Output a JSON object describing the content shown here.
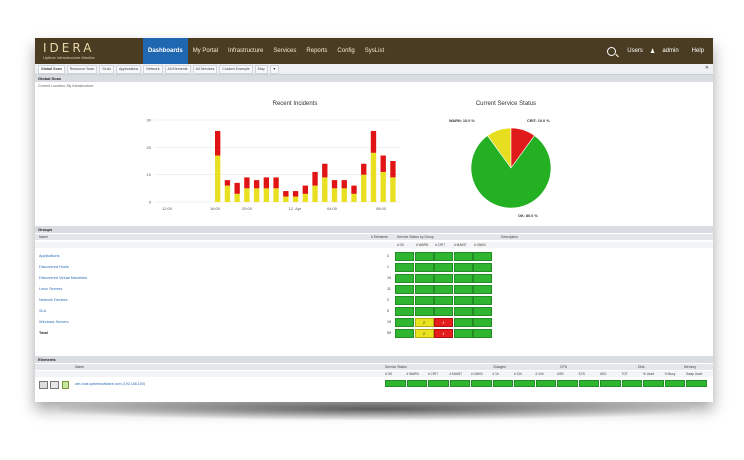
{
  "brand": {
    "name": "IDERA",
    "subtitle": "Uptime Infrastructure Monitor"
  },
  "nav": {
    "tabs": [
      "Dashboards",
      "My Portal",
      "Infrastructure",
      "Services",
      "Reports",
      "Config",
      "SysList"
    ],
    "active": "Dashboards",
    "users": "Users",
    "admin": "admin",
    "help": "Help"
  },
  "subtabs": [
    "Global Scan",
    "Resource Scan",
    "SLAs",
    "Applications",
    "Network",
    "All Elements",
    "All Services",
    "Custom Example",
    "Map"
  ],
  "global_scan": {
    "header": "Global Scan",
    "location": "Current Location: My Infrastructure"
  },
  "chart_data": [
    {
      "type": "bar",
      "title": "Recent Incidents",
      "stacked": true,
      "x_ticks": [
        "12:00",
        "16:00",
        "20:00",
        "12. Apr",
        "04:00",
        "08:00"
      ],
      "ylim": [
        0,
        30
      ],
      "y_ticks": [
        0,
        10,
        20,
        30
      ],
      "series": [
        {
          "color": "#e8e020",
          "values": [
            17,
            6,
            3,
            5,
            5,
            5,
            5,
            2,
            2,
            3,
            6,
            9,
            5,
            5,
            3,
            10,
            18,
            11,
            9
          ]
        },
        {
          "color": "#e01414",
          "values": [
            9,
            2,
            4,
            4,
            3,
            4,
            4,
            2,
            2,
            3,
            5,
            5,
            3,
            3,
            3,
            4,
            8,
            6,
            6
          ]
        }
      ]
    },
    {
      "type": "pie",
      "title": "Current Service Status",
      "slices": [
        {
          "label": "WARN: 10.0 %",
          "value": 10.0,
          "color": "#e6de1e"
        },
        {
          "label": "CRIT: 10.0 %",
          "value": 10.0,
          "color": "#e01a1a"
        },
        {
          "label": "OK: 80.0 %",
          "value": 80.0,
          "color": "#23b023"
        }
      ]
    }
  ],
  "groups": {
    "header": "Groups",
    "columns": {
      "name": "Name",
      "elements": "# Elements",
      "status": "Service Status by Group",
      "description": "Description"
    },
    "status_columns": [
      "# OK",
      "# WARN",
      "# CRIT",
      "# MAINT",
      "# UNKN"
    ],
    "rows": [
      {
        "name": "Applications",
        "count": "3",
        "cells": [
          "",
          "",
          "",
          "",
          ""
        ]
      },
      {
        "name": "Discovered Hosts",
        "count": "1",
        "cells": [
          "",
          "",
          "",
          "",
          ""
        ]
      },
      {
        "name": "Discovered Virtual Machines",
        "count": "19",
        "cells": [
          "",
          "",
          "",
          "",
          ""
        ]
      },
      {
        "name": "Linux Servers",
        "count": "11",
        "cells": [
          "",
          "",
          "",
          "",
          ""
        ]
      },
      {
        "name": "Network Devices",
        "count": "2",
        "cells": [
          "",
          "",
          "",
          "",
          ""
        ]
      },
      {
        "name": "SLA",
        "count": "0",
        "cells": [
          "",
          "",
          "",
          "",
          ""
        ]
      },
      {
        "name": "Windows Servers",
        "count": "19",
        "cells": [
          "",
          "2",
          "4",
          "",
          ""
        ]
      },
      {
        "name": "Total",
        "count": "59",
        "cells": [
          "",
          "2",
          "4",
          "",
          ""
        ]
      }
    ]
  },
  "elements": {
    "header": "Elements",
    "columns": {
      "name": "Name",
      "service_status": "Service Status",
      "outages": "Outages",
      "cpu": "CPU",
      "disk": "Disk",
      "memory": "Memory"
    },
    "sub_columns": [
      "# OK",
      "# WARN",
      "# CRIT",
      "# MAINT",
      "# UNKN",
      "# 1h",
      "# 12h",
      "# 24h",
      "USR",
      "SYS",
      "WIO",
      "TOT",
      "% Used",
      "% Busy",
      "Swap Used"
    ],
    "rows": [
      {
        "name": "win-host.uptimesoftware.com (192.168.100)"
      }
    ]
  }
}
